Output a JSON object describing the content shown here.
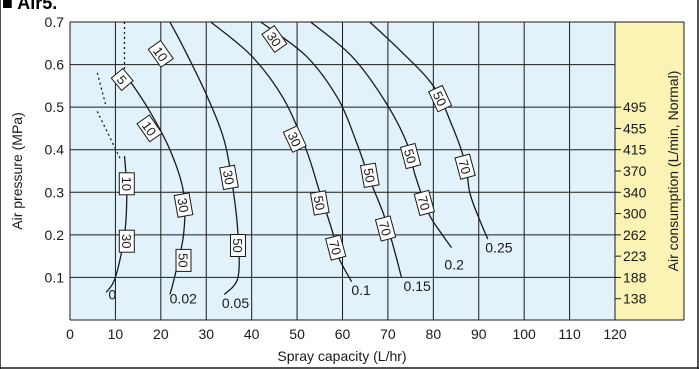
{
  "header_fragment": "■ Air5.",
  "chart_data": {
    "type": "line",
    "title": "",
    "xlabel": "Spray capacity (L/hr)",
    "ylabel": "Air pressure (MPa)",
    "y2label": "Air consumption (L/min, Normal)",
    "xlim": [
      0,
      120
    ],
    "ylim": [
      0,
      0.7
    ],
    "x_ticks": [
      "0",
      "10",
      "20",
      "30",
      "40",
      "50",
      "60",
      "70",
      "80",
      "90",
      "100",
      "110",
      "120"
    ],
    "y_ticks": [
      "0.1",
      "0.2",
      "0.3",
      "0.4",
      "0.5",
      "0.6",
      "0.7"
    ],
    "y2_ticks": [
      {
        "y": 0.5,
        "label": "495"
      },
      {
        "y": 0.45,
        "label": "455"
      },
      {
        "y": 0.4,
        "label": "415"
      },
      {
        "y": 0.35,
        "label": "370"
      },
      {
        "y": 0.3,
        "label": "340"
      },
      {
        "y": 0.25,
        "label": "300"
      },
      {
        "y": 0.2,
        "label": "262"
      },
      {
        "y": 0.15,
        "label": "223"
      },
      {
        "y": 0.1,
        "label": "188"
      },
      {
        "y": 0.05,
        "label": "138"
      }
    ],
    "grid": true,
    "colors": {
      "plot_bg": "#e2f2fa",
      "y2_bg": "#fbf3b4",
      "grid": "#1a1a1a",
      "curve": "#1a1a1a"
    },
    "series": [
      {
        "name": "0",
        "points": [
          [
            12,
            0.385
          ],
          [
            12.5,
            0.3
          ],
          [
            12,
            0.2
          ],
          [
            10,
            0.1
          ],
          [
            8,
            0.065
          ]
        ],
        "dotted": [
          [
            6,
            0.58
          ],
          [
            8,
            0.5
          ]
        ],
        "dotted2": [
          [
            6,
            0.49
          ],
          [
            11,
            0.38
          ]
        ]
      },
      {
        "name": "0.02",
        "points": [
          [
            12,
            0.58
          ],
          [
            17,
            0.5
          ],
          [
            22,
            0.4
          ],
          [
            25,
            0.3
          ],
          [
            25,
            0.2
          ],
          [
            23,
            0.1
          ],
          [
            22,
            0.06
          ]
        ],
        "dotted": [
          [
            12,
            0.7
          ],
          [
            12,
            0.58
          ]
        ]
      },
      {
        "name": "0.05",
        "points": [
          [
            22,
            0.7
          ],
          [
            25,
            0.64
          ],
          [
            30,
            0.53
          ],
          [
            34,
            0.42
          ],
          [
            36,
            0.3
          ],
          [
            37,
            0.2
          ],
          [
            37,
            0.1
          ],
          [
            34,
            0.06
          ]
        ]
      },
      {
        "name": "0.1",
        "points": [
          [
            31,
            0.7
          ],
          [
            40,
            0.62
          ],
          [
            47,
            0.52
          ],
          [
            52,
            0.4
          ],
          [
            55,
            0.3
          ],
          [
            58,
            0.2
          ],
          [
            59,
            0.15
          ],
          [
            62,
            0.09
          ]
        ]
      },
      {
        "name": "0.15",
        "points": [
          [
            42,
            0.7
          ],
          [
            52,
            0.62
          ],
          [
            59,
            0.52
          ],
          [
            63,
            0.42
          ],
          [
            66,
            0.33
          ],
          [
            69,
            0.25
          ],
          [
            71,
            0.18
          ],
          [
            73,
            0.1
          ]
        ]
      },
      {
        "name": "0.2",
        "points": [
          [
            53,
            0.7
          ],
          [
            62,
            0.62
          ],
          [
            69,
            0.52
          ],
          [
            74,
            0.42
          ],
          [
            76,
            0.34
          ],
          [
            79,
            0.25
          ],
          [
            82,
            0.2
          ],
          [
            84,
            0.17
          ]
        ]
      },
      {
        "name": "0.25",
        "points": [
          [
            66,
            0.7
          ],
          [
            73,
            0.63
          ],
          [
            80,
            0.55
          ],
          [
            84,
            0.46
          ],
          [
            87,
            0.37
          ],
          [
            88,
            0.3
          ],
          [
            90,
            0.24
          ],
          [
            92,
            0.19
          ]
        ]
      }
    ],
    "series_labels": [
      {
        "text": "0",
        "x": 8,
        "y": 0.06
      },
      {
        "text": "0.02",
        "x": 21.5,
        "y": 0.05
      },
      {
        "text": "0.05",
        "x": 33,
        "y": 0.04
      },
      {
        "text": "0.1",
        "x": 61.5,
        "y": 0.07
      },
      {
        "text": "0.15",
        "x": 73,
        "y": 0.08
      },
      {
        "text": "0.2",
        "x": 82,
        "y": 0.13
      },
      {
        "text": "0.25",
        "x": 91,
        "y": 0.17
      }
    ],
    "annotations": [
      {
        "text": "10",
        "x": 20,
        "y": 0.625,
        "rot": 55
      },
      {
        "text": "5",
        "x": 11.5,
        "y": 0.565,
        "rot": 50
      },
      {
        "text": "10",
        "x": 17.5,
        "y": 0.45,
        "rot": 55
      },
      {
        "text": "10",
        "x": 12.5,
        "y": 0.32,
        "rot": 90
      },
      {
        "text": "30",
        "x": 12.5,
        "y": 0.185,
        "rot": 90
      },
      {
        "text": "30",
        "x": 25,
        "y": 0.27,
        "rot": 80
      },
      {
        "text": "50",
        "x": 25,
        "y": 0.14,
        "rot": 90
      },
      {
        "text": "30",
        "x": 35,
        "y": 0.335,
        "rot": 80
      },
      {
        "text": "50",
        "x": 37,
        "y": 0.175,
        "rot": 90
      },
      {
        "text": "30",
        "x": 45,
        "y": 0.66,
        "rot": 55
      },
      {
        "text": "30",
        "x": 49.5,
        "y": 0.425,
        "rot": 65
      },
      {
        "text": "50",
        "x": 55,
        "y": 0.275,
        "rot": 80
      },
      {
        "text": "70",
        "x": 58.5,
        "y": 0.17,
        "rot": 75
      },
      {
        "text": "50",
        "x": 66,
        "y": 0.34,
        "rot": 80
      },
      {
        "text": "70",
        "x": 69.5,
        "y": 0.215,
        "rot": 75
      },
      {
        "text": "50",
        "x": 75,
        "y": 0.385,
        "rot": 75
      },
      {
        "text": "70",
        "x": 78,
        "y": 0.275,
        "rot": 75
      },
      {
        "text": "50",
        "x": 81.5,
        "y": 0.52,
        "rot": 65
      },
      {
        "text": "70",
        "x": 87,
        "y": 0.36,
        "rot": 75
      }
    ]
  }
}
